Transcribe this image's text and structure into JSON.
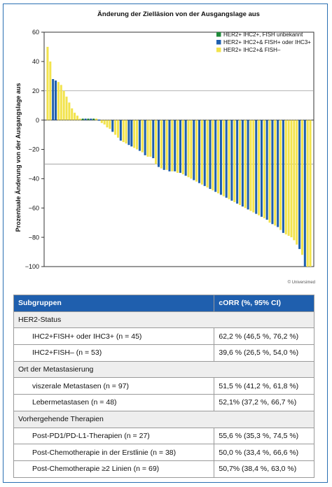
{
  "chart_data": {
    "type": "bar",
    "title": "Änderung der Zielläsion von der Ausgangslage aus",
    "ylabel": "Prozentuale Änderung von der Ausgangslage aus",
    "xlabel": "",
    "ylim": [
      -100,
      60
    ],
    "yticks": [
      60,
      40,
      20,
      0,
      -20,
      -40,
      -60,
      -80,
      -100
    ],
    "reference_lines": [
      20,
      -30
    ],
    "grid": false,
    "legend_position": "top-right",
    "credit": "© Universimed",
    "series": [
      {
        "name": "HER2+ IHC2+, FISH unbekannt",
        "color": "#1f8a3a"
      },
      {
        "name": "HER2+ IHC2+& FISH+ oder IHC3+",
        "color": "#1f5fae"
      },
      {
        "name": "HER2+ IHC2+& FISH–",
        "color": "#f2e34c"
      }
    ],
    "bars": [
      {
        "value": 50,
        "series": 2
      },
      {
        "value": 40,
        "series": 2
      },
      {
        "value": 28,
        "series": 1
      },
      {
        "value": 27,
        "series": 1
      },
      {
        "value": 26,
        "series": 2
      },
      {
        "value": 24,
        "series": 2
      },
      {
        "value": 20,
        "series": 2
      },
      {
        "value": 16,
        "series": 2
      },
      {
        "value": 12,
        "series": 2
      },
      {
        "value": 8,
        "series": 2
      },
      {
        "value": 5,
        "series": 2
      },
      {
        "value": 3,
        "series": 2
      },
      {
        "value": 1,
        "series": 2
      },
      {
        "value": 1,
        "series": 0
      },
      {
        "value": 1,
        "series": 1
      },
      {
        "value": 1,
        "series": 0
      },
      {
        "value": 1,
        "series": 1
      },
      {
        "value": 1,
        "series": 0
      },
      {
        "value": 1,
        "series": 2
      },
      {
        "value": 0,
        "series": 1
      },
      {
        "value": -2,
        "series": 2
      },
      {
        "value": -3,
        "series": 2
      },
      {
        "value": -5,
        "series": 2
      },
      {
        "value": -6,
        "series": 2
      },
      {
        "value": -8,
        "series": 1
      },
      {
        "value": -10,
        "series": 2
      },
      {
        "value": -12,
        "series": 2
      },
      {
        "value": -14,
        "series": 1
      },
      {
        "value": -15,
        "series": 2
      },
      {
        "value": -16,
        "series": 2
      },
      {
        "value": -17,
        "series": 1
      },
      {
        "value": -18,
        "series": 1
      },
      {
        "value": -19,
        "series": 2
      },
      {
        "value": -20,
        "series": 2
      },
      {
        "value": -21,
        "series": 1
      },
      {
        "value": -22,
        "series": 2
      },
      {
        "value": -24,
        "series": 1
      },
      {
        "value": -25,
        "series": 2
      },
      {
        "value": -25,
        "series": 2
      },
      {
        "value": -26,
        "series": 1
      },
      {
        "value": -30,
        "series": 2
      },
      {
        "value": -32,
        "series": 1
      },
      {
        "value": -33,
        "series": 2
      },
      {
        "value": -34,
        "series": 1
      },
      {
        "value": -34,
        "series": 2
      },
      {
        "value": -35,
        "series": 1
      },
      {
        "value": -35,
        "series": 2
      },
      {
        "value": -35,
        "series": 1
      },
      {
        "value": -36,
        "series": 2
      },
      {
        "value": -36,
        "series": 1
      },
      {
        "value": -37,
        "series": 2
      },
      {
        "value": -38,
        "series": 1
      },
      {
        "value": -39,
        "series": 2
      },
      {
        "value": -40,
        "series": 2
      },
      {
        "value": -41,
        "series": 1
      },
      {
        "value": -42,
        "series": 2
      },
      {
        "value": -43,
        "series": 1
      },
      {
        "value": -44,
        "series": 2
      },
      {
        "value": -45,
        "series": 1
      },
      {
        "value": -46,
        "series": 2
      },
      {
        "value": -47,
        "series": 1
      },
      {
        "value": -48,
        "series": 2
      },
      {
        "value": -49,
        "series": 1
      },
      {
        "value": -50,
        "series": 2
      },
      {
        "value": -51,
        "series": 1
      },
      {
        "value": -52,
        "series": 2
      },
      {
        "value": -53,
        "series": 1
      },
      {
        "value": -54,
        "series": 2
      },
      {
        "value": -55,
        "series": 1
      },
      {
        "value": -56,
        "series": 2
      },
      {
        "value": -57,
        "series": 1
      },
      {
        "value": -58,
        "series": 2
      },
      {
        "value": -59,
        "series": 1
      },
      {
        "value": -60,
        "series": 2
      },
      {
        "value": -61,
        "series": 1
      },
      {
        "value": -62,
        "series": 2
      },
      {
        "value": -63,
        "series": 2
      },
      {
        "value": -64,
        "series": 1
      },
      {
        "value": -65,
        "series": 2
      },
      {
        "value": -66,
        "series": 1
      },
      {
        "value": -67,
        "series": 2
      },
      {
        "value": -68,
        "series": 1
      },
      {
        "value": -70,
        "series": 2
      },
      {
        "value": -71,
        "series": 1
      },
      {
        "value": -72,
        "series": 2
      },
      {
        "value": -73,
        "series": 1
      },
      {
        "value": -75,
        "series": 2
      },
      {
        "value": -77,
        "series": 1
      },
      {
        "value": -78,
        "series": 2
      },
      {
        "value": -79,
        "series": 2
      },
      {
        "value": -80,
        "series": 2
      },
      {
        "value": -82,
        "series": 2
      },
      {
        "value": -85,
        "series": 2
      },
      {
        "value": -88,
        "series": 1
      },
      {
        "value": -92,
        "series": 2
      },
      {
        "value": -100,
        "series": 1
      },
      {
        "value": -100,
        "series": 2
      },
      {
        "value": -100,
        "series": 2
      }
    ]
  },
  "table": {
    "headers": [
      "Subgruppen",
      "cORR (%, 95% CI)"
    ],
    "rows": [
      {
        "kind": "section",
        "label": "HER2-Status"
      },
      {
        "kind": "data",
        "label": "IHC2+FISH+ oder IHC3+ (n = 45)",
        "value": "62,2 % (46,5 %, 76,2 %)"
      },
      {
        "kind": "data",
        "label": "IHC2+FISH– (n = 53)",
        "value": "39,6 % (26,5 %, 54,0 %)"
      },
      {
        "kind": "section",
        "label": "Ort der Metastasierung"
      },
      {
        "kind": "data",
        "label": "viszerale Metastasen (n = 97)",
        "value": "51,5 % (41,2 %, 61,8 %)"
      },
      {
        "kind": "data",
        "label": "Lebermetastasen (n = 48)",
        "value": "52,1% (37,2 %, 66,7 %)"
      },
      {
        "kind": "section",
        "label": "Vorhergehende Therapien"
      },
      {
        "kind": "data",
        "label": "Post-PD1/PD-L1-Therapien (n = 27)",
        "value": "55,6 % (35,3 %, 74,5 %)"
      },
      {
        "kind": "data",
        "label": "Post-Chemotherapie in der Erstlinie (n = 38)",
        "value": "50,0 % (33,4 %, 66,6 %)"
      },
      {
        "kind": "data",
        "label": "Post-Chemotherapie ≥2 Linien (n = 69)",
        "value": "50,7% (38,4 %, 63,0 %)"
      }
    ]
  }
}
